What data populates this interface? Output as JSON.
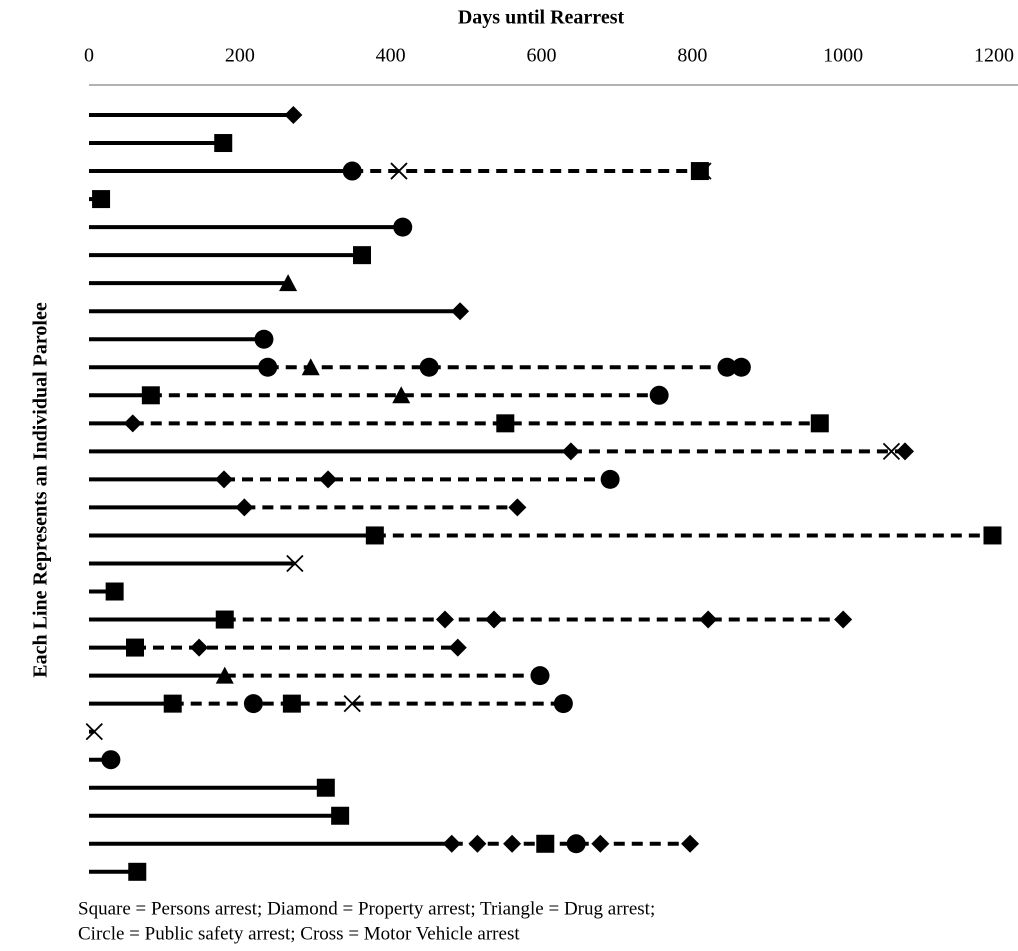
{
  "chart_data": {
    "type": "timeline",
    "x_label": "Days until Rearrest",
    "y_label": "Each Line Represents an Individual Parolee",
    "xlim": [
      0,
      1200
    ],
    "xticks": [
      0,
      200,
      400,
      600,
      800,
      1000,
      1200
    ],
    "color": "#000000",
    "parolees": [
      {
        "arrests": [
          {
            "day": 271,
            "type": "diamond"
          }
        ]
      },
      {
        "arrests": [
          {
            "day": 178,
            "type": "square"
          }
        ]
      },
      {
        "arrests": [
          {
            "day": 349,
            "type": "circle"
          },
          {
            "day": 411,
            "type": "cross"
          },
          {
            "day": 810,
            "type": "square"
          },
          {
            "day": 814,
            "type": "cross"
          }
        ]
      },
      {
        "arrests": [
          {
            "day": 16,
            "type": "square"
          }
        ]
      },
      {
        "arrests": [
          {
            "day": 416,
            "type": "circle"
          }
        ]
      },
      {
        "arrests": [
          {
            "day": 362,
            "type": "square"
          }
        ]
      },
      {
        "arrests": [
          {
            "day": 264,
            "type": "triangle"
          }
        ]
      },
      {
        "arrests": [
          {
            "day": 492,
            "type": "diamond"
          }
        ]
      },
      {
        "arrests": [
          {
            "day": 232,
            "type": "circle"
          }
        ]
      },
      {
        "arrests": [
          {
            "day": 237,
            "type": "circle"
          },
          {
            "day": 294,
            "type": "triangle"
          },
          {
            "day": 451,
            "type": "circle"
          },
          {
            "day": 846,
            "type": "circle"
          },
          {
            "day": 865,
            "type": "circle"
          }
        ]
      },
      {
        "arrests": [
          {
            "day": 82,
            "type": "square"
          },
          {
            "day": 414,
            "type": "triangle"
          },
          {
            "day": 756,
            "type": "circle"
          }
        ]
      },
      {
        "arrests": [
          {
            "day": 58,
            "type": "diamond"
          },
          {
            "day": 552,
            "type": "square"
          },
          {
            "day": 969,
            "type": "square"
          }
        ]
      },
      {
        "arrests": [
          {
            "day": 639,
            "type": "diamond"
          },
          {
            "day": 1064,
            "type": "cross"
          },
          {
            "day": 1082,
            "type": "diamond"
          }
        ]
      },
      {
        "arrests": [
          {
            "day": 179,
            "type": "diamond"
          },
          {
            "day": 317,
            "type": "diamond"
          },
          {
            "day": 691,
            "type": "circle"
          }
        ]
      },
      {
        "arrests": [
          {
            "day": 206,
            "type": "diamond"
          },
          {
            "day": 568,
            "type": "diamond"
          }
        ]
      },
      {
        "arrests": [
          {
            "day": 379,
            "type": "square"
          },
          {
            "day": 1198,
            "type": "square"
          }
        ]
      },
      {
        "arrests": [
          {
            "day": 273,
            "type": "cross"
          }
        ]
      },
      {
        "arrests": [
          {
            "day": 34,
            "type": "square"
          }
        ]
      },
      {
        "arrests": [
          {
            "day": 180,
            "type": "square"
          },
          {
            "day": 472,
            "type": "diamond"
          },
          {
            "day": 537,
            "type": "diamond"
          },
          {
            "day": 821,
            "type": "diamond"
          },
          {
            "day": 1000,
            "type": "diamond"
          }
        ]
      },
      {
        "arrests": [
          {
            "day": 61,
            "type": "square"
          },
          {
            "day": 146,
            "type": "diamond"
          },
          {
            "day": 489,
            "type": "diamond"
          }
        ]
      },
      {
        "arrests": [
          {
            "day": 180,
            "type": "triangle"
          },
          {
            "day": 598,
            "type": "circle"
          }
        ]
      },
      {
        "arrests": [
          {
            "day": 111,
            "type": "square"
          },
          {
            "day": 218,
            "type": "circle"
          },
          {
            "day": 269,
            "type": "square"
          },
          {
            "day": 349,
            "type": "cross"
          },
          {
            "day": 629,
            "type": "circle"
          }
        ]
      },
      {
        "arrests": [
          {
            "day": 7,
            "type": "cross"
          }
        ]
      },
      {
        "arrests": [
          {
            "day": 29,
            "type": "circle"
          }
        ]
      },
      {
        "arrests": [
          {
            "day": 314,
            "type": "square"
          }
        ]
      },
      {
        "arrests": [
          {
            "day": 333,
            "type": "square"
          }
        ]
      },
      {
        "arrests": [
          {
            "day": 481,
            "type": "diamond"
          },
          {
            "day": 515,
            "type": "diamond"
          },
          {
            "day": 561,
            "type": "diamond"
          },
          {
            "day": 605,
            "type": "square"
          },
          {
            "day": 646,
            "type": "circle"
          },
          {
            "day": 678,
            "type": "diamond"
          },
          {
            "day": 797,
            "type": "diamond"
          }
        ]
      },
      {
        "arrests": [
          {
            "day": 64,
            "type": "square"
          }
        ]
      }
    ],
    "note": [
      "Square = Persons arrest; Diamond = Property arrest; Triangle = Drug arrest;",
      "Circle = Public safety arrest; Cross = Motor Vehicle arrest"
    ]
  }
}
